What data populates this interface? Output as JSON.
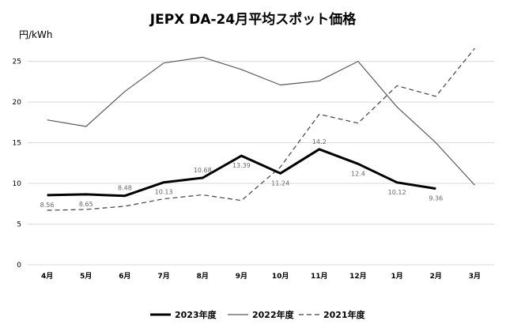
{
  "chart_data": {
    "type": "line",
    "title": "JEPX DA-24月平均スポット価格",
    "ylabel": "円/kWh",
    "xlabel": "",
    "ylim": [
      0,
      27
    ],
    "yticks": [
      0,
      5,
      10,
      15,
      20,
      25
    ],
    "grid": true,
    "legend_position": "bottom",
    "categories": [
      "4月",
      "5月",
      "6月",
      "7月",
      "8月",
      "9月",
      "10月",
      "11月",
      "12月",
      "1月",
      "2月",
      "3月"
    ],
    "series": [
      {
        "name": "2023年度",
        "values": [
          8.56,
          8.65,
          8.48,
          10.13,
          10.68,
          13.39,
          11.24,
          14.2,
          12.4,
          10.12,
          9.36,
          null
        ],
        "data_labels": [
          "8.56",
          "8.65",
          "8.48",
          "10.13",
          "10.68",
          "13.39",
          "11.24",
          "14.2",
          "12.4",
          "10.12",
          "9.36",
          ""
        ],
        "color": "#000000",
        "style": "solid-thick"
      },
      {
        "name": "2022年度",
        "values": [
          17.8,
          17.0,
          21.3,
          24.8,
          25.5,
          24.0,
          22.1,
          22.6,
          25.0,
          19.4,
          15.0,
          9.8
        ],
        "color": "#595959",
        "style": "solid-thin"
      },
      {
        "name": "2021年度",
        "values": [
          6.7,
          6.8,
          7.2,
          8.1,
          8.6,
          7.9,
          12.0,
          18.5,
          17.4,
          22.0,
          20.7,
          26.6
        ],
        "color": "#404040",
        "style": "dashed"
      }
    ]
  }
}
